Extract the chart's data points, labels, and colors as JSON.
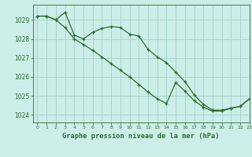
{
  "title": "Graphe pression niveau de la mer (hPa)",
  "background_color": "#cceee8",
  "grid_color": "#aad4ce",
  "line_color": "#2d6b2d",
  "xlim": [
    -0.5,
    23
  ],
  "ylim": [
    1023.6,
    1029.8
  ],
  "yticks": [
    1024,
    1025,
    1026,
    1027,
    1028,
    1029
  ],
  "xticks": [
    0,
    1,
    2,
    3,
    4,
    5,
    6,
    7,
    8,
    9,
    10,
    11,
    12,
    13,
    14,
    15,
    16,
    17,
    18,
    19,
    20,
    21,
    22,
    23
  ],
  "series1_x": [
    0,
    1,
    2,
    3,
    4,
    5,
    6,
    7,
    8,
    9,
    10,
    11,
    12,
    13,
    14,
    15,
    16,
    17,
    18,
    19,
    20,
    21,
    22,
    23
  ],
  "series1_y": [
    1029.2,
    1029.2,
    1029.0,
    1029.4,
    1028.2,
    1028.0,
    1028.35,
    1028.55,
    1028.65,
    1028.6,
    1028.25,
    1028.15,
    1027.45,
    1027.05,
    1026.75,
    1026.25,
    1025.75,
    1025.05,
    1024.55,
    1024.25,
    1024.25,
    1024.35,
    1024.45,
    1024.85
  ],
  "series2_x": [
    0,
    1,
    2,
    3,
    4,
    5,
    6,
    7,
    8,
    9,
    10,
    11,
    12,
    13,
    14,
    15,
    16,
    17,
    18,
    19,
    20,
    21,
    22,
    23
  ],
  "series2_y": [
    1029.2,
    1029.2,
    1029.0,
    1028.6,
    1028.0,
    1027.7,
    1027.4,
    1027.05,
    1026.7,
    1026.35,
    1026.0,
    1025.6,
    1025.2,
    1024.85,
    1024.6,
    1025.7,
    1025.25,
    1024.75,
    1024.4,
    1024.2,
    1024.2,
    1024.35,
    1024.45,
    1024.85
  ]
}
